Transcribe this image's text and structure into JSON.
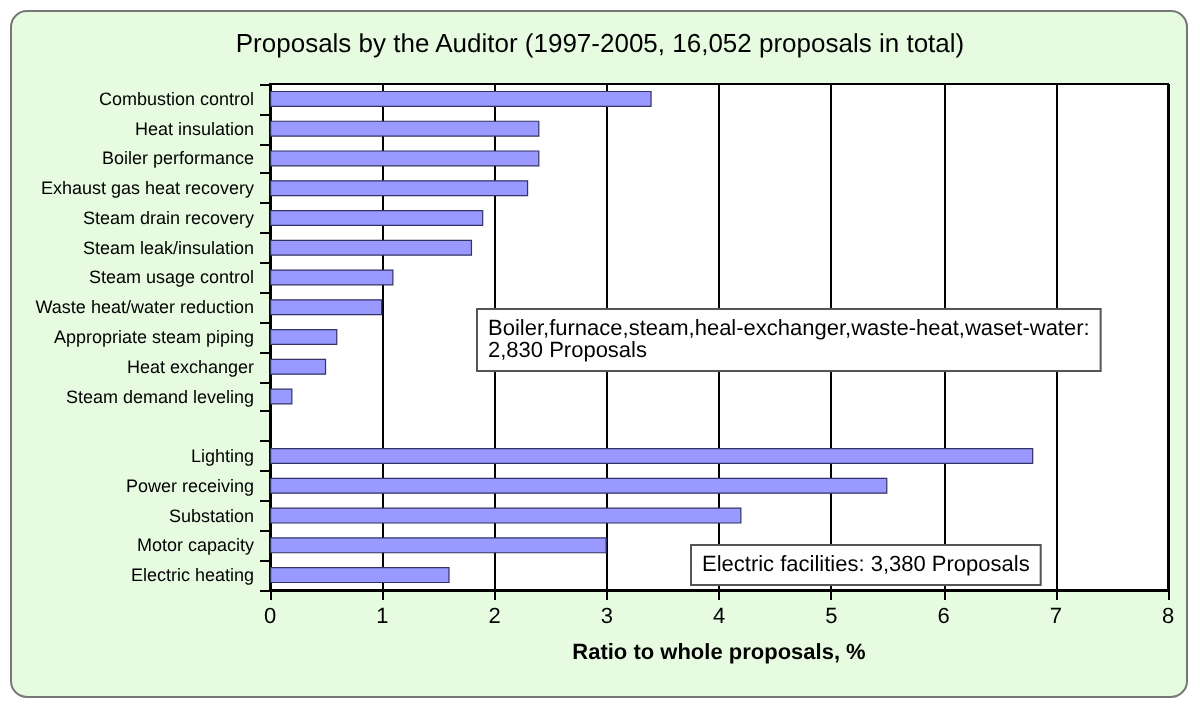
{
  "chart_data": {
    "type": "bar",
    "orientation": "horizontal",
    "title": "Proposals by the Auditor (1997-2005, 16,052 proposals in total)",
    "xlabel": "Ratio to whole proposals, %",
    "categories": [
      "Combustion control",
      "Heat insulation",
      "Boiler performance",
      "Exhaust gas heat recovery",
      "Steam drain recovery",
      "Steam leak/insulation",
      "Steam usage control",
      "Waste heat/water reduction",
      "Appropriate steam piping",
      "Heat exchanger",
      "Steam demand leveling",
      null,
      "Lighting",
      "Power receiving",
      "Substation",
      "Motor capacity",
      "Electric heating"
    ],
    "values": [
      3.4,
      2.4,
      2.4,
      2.3,
      1.9,
      1.8,
      1.1,
      1.0,
      0.6,
      0.5,
      0.2,
      null,
      6.8,
      5.5,
      4.2,
      3.0,
      1.6
    ],
    "color": "#9999ff",
    "xlim": [
      0,
      8
    ],
    "xticks": [
      0,
      1,
      2,
      3,
      4,
      5,
      6,
      7,
      8
    ],
    "grid": "x",
    "annotations": [
      "Boiler,furnace,steam,heal-exchanger,waste-heat,waset-water:\n2,830 Proposals",
      "Electric facilities: 3,380 Proposals"
    ]
  }
}
